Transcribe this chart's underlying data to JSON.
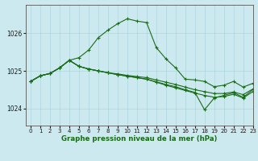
{
  "title": "Graphe pression niveau de la mer (hPa)",
  "bg_color": "#cce9f0",
  "grid_color": "#afd4de",
  "line_color": "#1a6b1a",
  "xlim": [
    -0.5,
    23
  ],
  "ylim": [
    1023.55,
    1026.75
  ],
  "yticks": [
    1024,
    1025,
    1026
  ],
  "xticks": [
    0,
    1,
    2,
    3,
    4,
    5,
    6,
    7,
    8,
    9,
    10,
    11,
    12,
    13,
    14,
    15,
    16,
    17,
    18,
    19,
    20,
    21,
    22,
    23
  ],
  "series": [
    [
      1024.72,
      1024.87,
      1024.93,
      1025.08,
      1025.28,
      1025.35,
      1025.55,
      1025.88,
      1026.08,
      1026.25,
      1026.38,
      1026.32,
      1026.28,
      1025.62,
      1025.32,
      1025.08,
      1024.78,
      1024.76,
      1024.72,
      1024.58,
      1024.62,
      1024.72,
      1024.57,
      1024.67
    ],
    [
      1024.72,
      1024.87,
      1024.93,
      1025.08,
      1025.28,
      1025.12,
      1025.05,
      1025.0,
      1024.95,
      1024.92,
      1024.88,
      1024.85,
      1024.82,
      1024.76,
      1024.7,
      1024.64,
      1024.57,
      1024.5,
      1024.45,
      1024.4,
      1024.4,
      1024.44,
      1024.37,
      1024.52
    ],
    [
      1024.72,
      1024.87,
      1024.93,
      1025.08,
      1025.28,
      1025.12,
      1025.05,
      1025.0,
      1024.95,
      1024.9,
      1024.86,
      1024.82,
      1024.78,
      1024.71,
      1024.64,
      1024.58,
      1024.5,
      1024.43,
      1023.97,
      1024.28,
      1024.35,
      1024.42,
      1024.3,
      1024.5
    ],
    [
      1024.72,
      1024.87,
      1024.93,
      1025.08,
      1025.28,
      1025.12,
      1025.05,
      1025.0,
      1024.95,
      1024.9,
      1024.86,
      1024.82,
      1024.78,
      1024.7,
      1024.62,
      1024.55,
      1024.48,
      1024.41,
      1024.35,
      1024.3,
      1024.32,
      1024.38,
      1024.28,
      1024.45
    ]
  ]
}
